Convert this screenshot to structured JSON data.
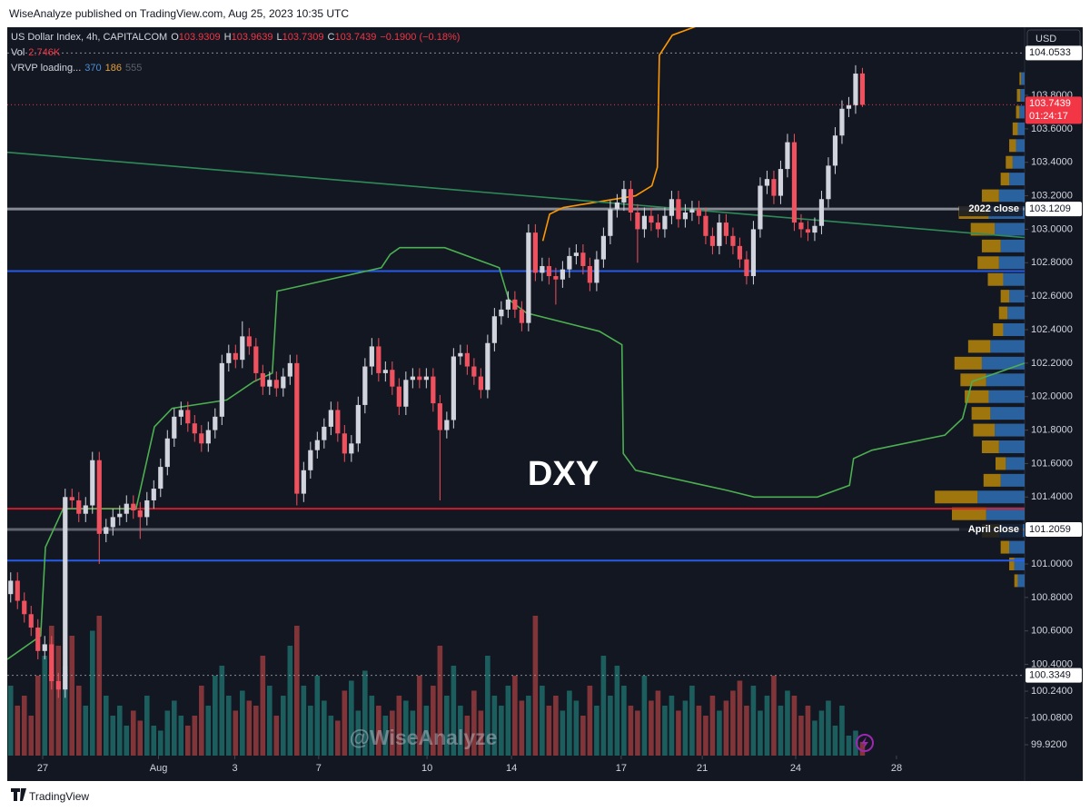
{
  "publisher": "WiseAnalyze published on TradingView.com, Aug 25, 2023 10:35 UTC",
  "footer": "TradingView",
  "chart_data": {
    "type": "candlestick",
    "title": "US Dollar Index, 4h, CAPITALCOM",
    "ohlc_legend": [
      {
        "label": "O",
        "value": 103.9309
      },
      {
        "label": "H",
        "value": 103.9639
      },
      {
        "label": "L",
        "value": 103.7309
      },
      {
        "label": "C",
        "value": 103.7439
      }
    ],
    "change": "−0.1900 (−0.18%)",
    "volume_legend": {
      "label": "Vol",
      "value": "2.746K"
    },
    "vrvp_legend": {
      "label": "VRVP loading...",
      "values": [
        370,
        186,
        555
      ],
      "colors": [
        "#4a8fd6",
        "#e3a13c",
        "#5d606b"
      ]
    },
    "currency": "USD",
    "annotation": "DXY",
    "watermark": "@WiseAnalyze",
    "xlim": [
      -0.5,
      148.8
    ],
    "xticks": [
      {
        "value": 4.7,
        "label": "27"
      },
      {
        "value": 21.7,
        "label": "Aug"
      },
      {
        "value": 32.9,
        "label": "3"
      },
      {
        "value": 45.2,
        "label": "7"
      },
      {
        "value": 61.1,
        "label": "10"
      },
      {
        "value": 73.5,
        "label": "14"
      },
      {
        "value": 89.6,
        "label": "17"
      },
      {
        "value": 101.5,
        "label": "21"
      },
      {
        "value": 115.2,
        "label": "24"
      },
      {
        "value": 130,
        "label": "28"
      }
    ],
    "ylim": [
      99.855,
      104.207
    ],
    "yticks": [
      {
        "value": 103.8,
        "label": "103.8000"
      },
      {
        "value": 103.6,
        "label": "103.6000"
      },
      {
        "value": 103.4,
        "label": "103.4000"
      },
      {
        "value": 103.2,
        "label": "103.2000"
      },
      {
        "value": 103.0,
        "label": "103.0000"
      },
      {
        "value": 102.8,
        "label": "102.8000"
      },
      {
        "value": 102.6,
        "label": "102.6000"
      },
      {
        "value": 102.4,
        "label": "102.4000"
      },
      {
        "value": 102.2,
        "label": "102.2000"
      },
      {
        "value": 102.0,
        "label": "102.0000"
      },
      {
        "value": 101.8,
        "label": "101.8000"
      },
      {
        "value": 101.6,
        "label": "101.6000"
      },
      {
        "value": 101.4,
        "label": "101.4000"
      },
      {
        "value": 101.0,
        "label": "101.0000"
      },
      {
        "value": 100.8,
        "label": "100.8000"
      },
      {
        "value": 100.6,
        "label": "100.6000"
      },
      {
        "value": 100.4,
        "label": "100.4000"
      },
      {
        "value": 100.24,
        "label": "100.2400"
      },
      {
        "value": 100.08,
        "label": "100.0800"
      },
      {
        "value": 99.92,
        "label": "99.9200"
      }
    ],
    "grid": false,
    "up_color": "#d1d4dc",
    "down_color": "#f0515e",
    "volume_up_color": "#26a69a",
    "volume_down_color": "#ef5350",
    "open": [
      100.82,
      100.9,
      100.78,
      100.7,
      100.62,
      100.48,
      100.52,
      100.3,
      100.25,
      101.4,
      101.38,
      101.3,
      101.35,
      101.62,
      101.18,
      101.22,
      101.28,
      101.3,
      101.36,
      101.32,
      101.28,
      101.38,
      101.45,
      101.58,
      101.75,
      101.88,
      101.92,
      101.84,
      101.78,
      101.72,
      101.8,
      101.88,
      102.2,
      102.26,
      102.22,
      102.36,
      102.3,
      102.14,
      102.06,
      102.1,
      102.05,
      102.12,
      102.2,
      101.42,
      101.56,
      101.68,
      101.74,
      101.82,
      101.92,
      101.78,
      101.66,
      101.72,
      101.95,
      102.18,
      102.3,
      102.14,
      102.16,
      102.06,
      101.94,
      102.1,
      102.12,
      102.1,
      102.12,
      101.96,
      101.8,
      101.86,
      102.24,
      102.26,
      102.18,
      102.12,
      102.04,
      102.32,
      102.48,
      102.52,
      102.58,
      102.52,
      102.44,
      102.98,
      102.74,
      102.78,
      102.72,
      102.7,
      102.76,
      102.84,
      102.86,
      102.78,
      102.68,
      102.82,
      102.96,
      103.12,
      103.16,
      103.24,
      103.1,
      103.0,
      103.08,
      103.04,
      103.0,
      103.08,
      103.18,
      103.06,
      103.1,
      103.12,
      103.08,
      102.96,
      102.9,
      103.04,
      102.96,
      102.9,
      102.82,
      102.72,
      103.0,
      103.26,
      103.3,
      103.2,
      103.36,
      103.52,
      103.04,
      103.0,
      102.98,
      103.02,
      103.18,
      103.38,
      103.56,
      103.72,
      103.74,
      103.9309
    ],
    "high": [
      100.95,
      100.95,
      100.83,
      100.75,
      100.67,
      100.57,
      100.57,
      100.35,
      101.45,
      101.45,
      101.43,
      101.4,
      101.67,
      101.67,
      101.27,
      101.33,
      101.35,
      101.41,
      101.41,
      101.37,
      101.43,
      101.5,
      101.63,
      101.8,
      101.93,
      101.97,
      101.97,
      101.89,
      101.83,
      101.85,
      101.93,
      102.25,
      102.31,
      102.31,
      102.45,
      102.41,
      102.35,
      102.19,
      102.15,
      102.15,
      102.17,
      102.25,
      102.25,
      101.61,
      101.73,
      101.79,
      101.87,
      101.97,
      101.97,
      101.83,
      101.77,
      102.0,
      102.23,
      102.35,
      102.35,
      102.21,
      102.21,
      102.11,
      102.15,
      102.17,
      102.17,
      102.17,
      102.17,
      102.01,
      101.91,
      102.29,
      102.31,
      102.31,
      102.23,
      102.17,
      102.37,
      102.53,
      102.57,
      102.63,
      102.63,
      102.57,
      103.03,
      103.03,
      102.83,
      102.83,
      102.77,
      102.81,
      102.89,
      102.91,
      102.91,
      102.83,
      102.87,
      103.01,
      103.17,
      103.21,
      103.29,
      103.29,
      103.15,
      103.13,
      103.13,
      103.09,
      103.13,
      103.23,
      103.23,
      103.15,
      103.17,
      103.17,
      103.13,
      103.01,
      103.09,
      103.09,
      103.01,
      102.95,
      102.87,
      103.05,
      103.31,
      103.35,
      103.35,
      103.41,
      103.57,
      103.57,
      103.09,
      103.05,
      103.07,
      103.23,
      103.43,
      103.61,
      103.77,
      103.79,
      103.98,
      103.9639
    ],
    "low": [
      100.77,
      100.73,
      100.65,
      100.57,
      100.43,
      100.43,
      100.25,
      100.2,
      100.2,
      101.33,
      101.25,
      101.25,
      101.3,
      101.0,
      101.13,
      101.17,
      101.23,
      101.25,
      101.27,
      101.15,
      101.23,
      101.33,
      101.4,
      101.53,
      101.7,
      101.83,
      101.79,
      101.73,
      101.67,
      101.67,
      101.75,
      101.83,
      102.15,
      102.17,
      102.17,
      102.25,
      102.09,
      102.01,
      102.01,
      102.0,
      102.0,
      102.07,
      101.35,
      101.37,
      101.51,
      101.63,
      101.69,
      101.77,
      101.73,
      101.61,
      101.61,
      101.67,
      101.9,
      102.13,
      102.09,
      102.09,
      102.01,
      101.89,
      101.89,
      102.05,
      102.05,
      102.05,
      101.91,
      101.38,
      101.75,
      101.81,
      102.19,
      102.13,
      102.07,
      101.99,
      101.99,
      102.27,
      102.43,
      102.47,
      102.47,
      102.39,
      102.39,
      102.69,
      102.69,
      102.67,
      102.55,
      102.65,
      102.71,
      102.79,
      102.73,
      102.63,
      102.63,
      102.77,
      102.91,
      103.07,
      103.11,
      103.05,
      102.8,
      102.95,
      102.99,
      102.95,
      102.95,
      103.03,
      103.01,
      103.01,
      103.05,
      103.03,
      102.91,
      102.85,
      102.85,
      102.91,
      102.85,
      102.77,
      102.67,
      102.67,
      102.95,
      103.21,
      103.15,
      103.15,
      103.31,
      102.99,
      102.95,
      102.93,
      102.93,
      102.97,
      103.13,
      103.33,
      103.51,
      103.67,
      103.69,
      103.7309
    ],
    "close": [
      100.9,
      100.78,
      100.7,
      100.62,
      100.48,
      100.52,
      100.3,
      100.25,
      101.4,
      101.38,
      101.3,
      101.35,
      101.62,
      101.18,
      101.22,
      101.28,
      101.3,
      101.36,
      101.32,
      101.28,
      101.38,
      101.45,
      101.58,
      101.75,
      101.88,
      101.92,
      101.84,
      101.78,
      101.72,
      101.8,
      101.88,
      102.2,
      102.26,
      102.22,
      102.36,
      102.3,
      102.14,
      102.06,
      102.1,
      102.05,
      102.12,
      102.2,
      101.42,
      101.56,
      101.68,
      101.74,
      101.82,
      101.92,
      101.78,
      101.66,
      101.72,
      101.95,
      102.18,
      102.3,
      102.14,
      102.16,
      102.06,
      101.94,
      102.1,
      102.12,
      102.1,
      102.12,
      101.96,
      101.8,
      101.86,
      102.24,
      102.26,
      102.18,
      102.12,
      102.04,
      102.32,
      102.48,
      102.52,
      102.58,
      102.52,
      102.44,
      102.98,
      102.74,
      102.78,
      102.72,
      102.7,
      102.76,
      102.84,
      102.86,
      102.78,
      102.68,
      102.82,
      102.96,
      103.12,
      103.16,
      103.24,
      103.1,
      103.0,
      103.08,
      103.04,
      103.0,
      103.08,
      103.18,
      103.06,
      103.1,
      103.12,
      103.08,
      102.96,
      102.9,
      103.04,
      102.96,
      102.9,
      102.82,
      102.72,
      103.0,
      103.26,
      103.3,
      103.2,
      103.36,
      103.52,
      103.04,
      103.0,
      102.98,
      103.02,
      103.18,
      103.38,
      103.56,
      103.72,
      103.74,
      103.93,
      103.7439
    ],
    "vlim": [
      0,
      50
    ],
    "volume": [
      14,
      10,
      12,
      8,
      16,
      20,
      26,
      22,
      18,
      24,
      14,
      10,
      25,
      28,
      12,
      8,
      10,
      6,
      9,
      7,
      12,
      6,
      5,
      9,
      11,
      8,
      6,
      8,
      14,
      10,
      16,
      18,
      12,
      9,
      13,
      11,
      10,
      20,
      14,
      8,
      12,
      22,
      26,
      14,
      10,
      16,
      11,
      8,
      7,
      13,
      15,
      9,
      17,
      12,
      10,
      8,
      9,
      12,
      11,
      9,
      16,
      10,
      14,
      22,
      12,
      18,
      10,
      8,
      13,
      9,
      20,
      12,
      10,
      14,
      16,
      11,
      12,
      28,
      14,
      10,
      12,
      9,
      13,
      11,
      8,
      14,
      10,
      20,
      12,
      18,
      14,
      10,
      9,
      16,
      11,
      13,
      10,
      12,
      9,
      11,
      14,
      10,
      8,
      12,
      9,
      11,
      13,
      15,
      10,
      14,
      9,
      12,
      16,
      10,
      13,
      12,
      8,
      10,
      7,
      9,
      11,
      6,
      10,
      4,
      5,
      2.746
    ],
    "volume_profile": {
      "prices": [
        100.9,
        101.0,
        101.1,
        101.2,
        101.3,
        101.4,
        101.5,
        101.6,
        101.7,
        101.8,
        101.9,
        102.0,
        102.1,
        102.2,
        102.3,
        102.4,
        102.5,
        102.6,
        102.7,
        102.8,
        102.9,
        103.0,
        103.1,
        103.2,
        103.3,
        103.4,
        103.5,
        103.6,
        103.7,
        103.8,
        103.9
      ],
      "xlim": [
        0,
        120
      ],
      "up": [
        8,
        12,
        18,
        30,
        45,
        55,
        28,
        22,
        30,
        35,
        40,
        42,
        45,
        50,
        40,
        25,
        20,
        18,
        25,
        30,
        28,
        35,
        42,
        30,
        18,
        14,
        10,
        8,
        6,
        5,
        4
      ],
      "down": [
        4,
        6,
        10,
        20,
        40,
        50,
        20,
        12,
        20,
        25,
        22,
        28,
        30,
        32,
        26,
        12,
        10,
        10,
        18,
        25,
        22,
        28,
        35,
        20,
        10,
        8,
        8,
        6,
        4,
        4,
        2
      ],
      "up_color": "#2f6fb5",
      "down_color": "#b8860b"
    },
    "overlays": [
      {
        "color": "#4caf50",
        "x": [
          -0.5,
          4.4,
          5.1,
          7.7,
          18.4,
          21.1,
          23.7,
          31.7,
          35.7,
          38.4,
          39.1,
          42.4,
          54.4,
          55.7,
          57.1,
          63.7,
          71.7,
          73.1,
          75.7,
          86.4,
          89.7,
          89.9,
          91.7,
          105.1,
          109.1,
          118.4,
          123.1,
          123.7,
          126.4,
          137.1,
          139.7,
          141.1,
          148.8
        ],
        "values": [
          100.43,
          100.57,
          101.1,
          101.33,
          101.33,
          101.82,
          101.93,
          101.98,
          102.09,
          102.14,
          102.63,
          102.66,
          102.77,
          102.85,
          102.89,
          102.89,
          102.77,
          102.58,
          102.5,
          102.39,
          102.31,
          101.66,
          101.56,
          101.44,
          101.4,
          101.4,
          101.47,
          101.63,
          101.68,
          101.77,
          101.87,
          102.09,
          102.2
        ]
      },
      {
        "color": "#ff9800",
        "x": [
          78.1,
          79.1,
          81.1,
          91.7,
          94.1,
          94.9,
          95.2,
          97.1,
          101.1
        ],
        "values": [
          102.93,
          103.09,
          103.13,
          103.2,
          103.26,
          103.37,
          104.04,
          104.16,
          104.22
        ]
      },
      {
        "color": "#2e8b57",
        "x": [
          -0.5,
          148.8
        ],
        "values": [
          103.46,
          102.95
        ]
      }
    ],
    "levels": [
      {
        "value": 103.1209,
        "color": "#9598a1",
        "width": 3,
        "label": "2022 close",
        "axis_label": true
      },
      {
        "value": 102.75,
        "color": "#2962ff",
        "width": 2
      },
      {
        "value": 101.33,
        "color": "#e01e2b",
        "width": 2
      },
      {
        "value": 101.2059,
        "color": "#6a6d78",
        "width": 3,
        "label": "April close",
        "axis_label": true
      },
      {
        "value": 101.02,
        "color": "#2962ff",
        "width": 2
      },
      {
        "value": 104.0533,
        "color": "#9598a1",
        "width": 1,
        "dashed": true,
        "axis_label": true
      },
      {
        "value": 100.3349,
        "color": "#9598a1",
        "width": 1,
        "dashed": true,
        "axis_label": true
      }
    ],
    "last_price": 103.7439,
    "countdown": "01:24:17"
  }
}
